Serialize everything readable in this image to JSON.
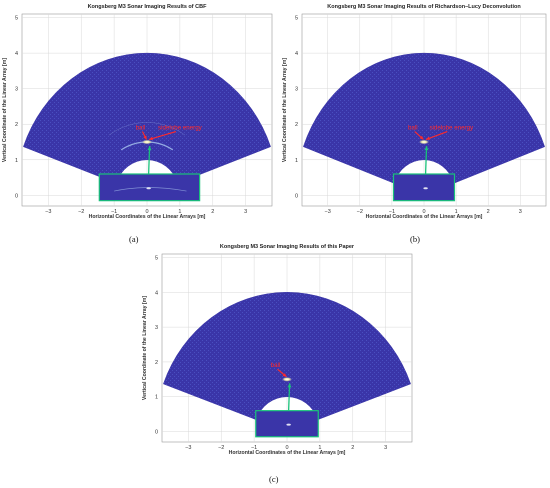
{
  "chart_data": [
    {
      "type": "heatmap",
      "id": "a",
      "title": "Kongsberg M3 Sonar  Imaging Results of CBF",
      "xlabel": "Horizontal Coordinates of the Linear Arrays [m]",
      "ylabel": "Vertical Coordinate of the Linear Array [m]",
      "xlim": [
        -3.8,
        3.8
      ],
      "ylim": [
        -0.3,
        5.1
      ],
      "xticks": [
        -3,
        -2,
        -1,
        0,
        1,
        2,
        3
      ],
      "yticks": [
        0,
        1,
        2,
        3,
        4,
        5
      ],
      "grid": true,
      "fan": {
        "range_min_m": 1.0,
        "range_max_m": 4.0,
        "half_angle_deg": 70
      },
      "box": {
        "x": [
          -1.45,
          1.6
        ],
        "y": [
          -0.15,
          0.6
        ]
      },
      "target": {
        "x": 0.0,
        "y": 1.5
      },
      "sidelobe_arc_radius_m": 1.5,
      "annotations": [
        {
          "text": "ball",
          "x": -0.2,
          "y": 1.85
        },
        {
          "text": "sidelobe energy",
          "x": 1.0,
          "y": 1.85
        }
      ],
      "caption": "(a)"
    },
    {
      "type": "heatmap",
      "id": "b",
      "title": "Kongsberg M3 Sonar  Imaging Results of Richardson–Lucy Deconvolution",
      "xlabel": "Horizontal Coordinates of the Linear Arrays [m]",
      "ylabel": "Vertical Coordinate of the Linear Array [m]",
      "xlim": [
        -3.8,
        3.8
      ],
      "ylim": [
        -0.3,
        5.1
      ],
      "xticks": [
        -3,
        -2,
        -1,
        0,
        1,
        2,
        3
      ],
      "yticks": [
        0,
        1,
        2,
        3,
        4,
        5
      ],
      "grid": true,
      "fan": {
        "range_min_m": 1.0,
        "range_max_m": 4.0,
        "half_angle_deg": 70
      },
      "box": {
        "x": [
          -0.95,
          0.95
        ],
        "y": [
          -0.15,
          0.6
        ]
      },
      "target": {
        "x": 0.0,
        "y": 1.5
      },
      "sidelobe_arc_radius_m": 0,
      "annotations": [
        {
          "text": "ball",
          "x": -0.35,
          "y": 1.85
        },
        {
          "text": "sidelobe energy",
          "x": 0.85,
          "y": 1.85
        }
      ],
      "caption": "(b)"
    },
    {
      "type": "heatmap",
      "id": "c",
      "title": "Kongsberg M3 Sonar  Imaging Results of this Paper",
      "xlabel": "Horizontal Coordinates of the Linear Arrays [m]",
      "ylabel": "Vertical Coordinate of the Linear Array [m]",
      "xlim": [
        -3.8,
        3.8
      ],
      "ylim": [
        -0.3,
        5.1
      ],
      "xticks": [
        -3,
        -2,
        -1,
        0,
        1,
        2,
        3
      ],
      "yticks": [
        0,
        1,
        2,
        3,
        4,
        5
      ],
      "grid": true,
      "fan": {
        "range_min_m": 1.0,
        "range_max_m": 4.0,
        "half_angle_deg": 70
      },
      "box": {
        "x": [
          -0.95,
          0.95
        ],
        "y": [
          -0.15,
          0.6
        ]
      },
      "target": {
        "x": 0.0,
        "y": 1.5
      },
      "sidelobe_arc_radius_m": 0,
      "annotations": [
        {
          "text": "ball",
          "x": -0.35,
          "y": 1.85
        }
      ],
      "caption": "(c)"
    }
  ],
  "colors": {
    "fan_fill": "#3a35a8",
    "fan_speckle": "#4a4fc0",
    "target": "#f5f0b0",
    "sidelobe": "#9fb8e8",
    "box_stroke": "#19c27a",
    "arrow_green": "#19c27a",
    "arrow_red": "#ff2a2a",
    "grid": "#d8d8d8"
  }
}
